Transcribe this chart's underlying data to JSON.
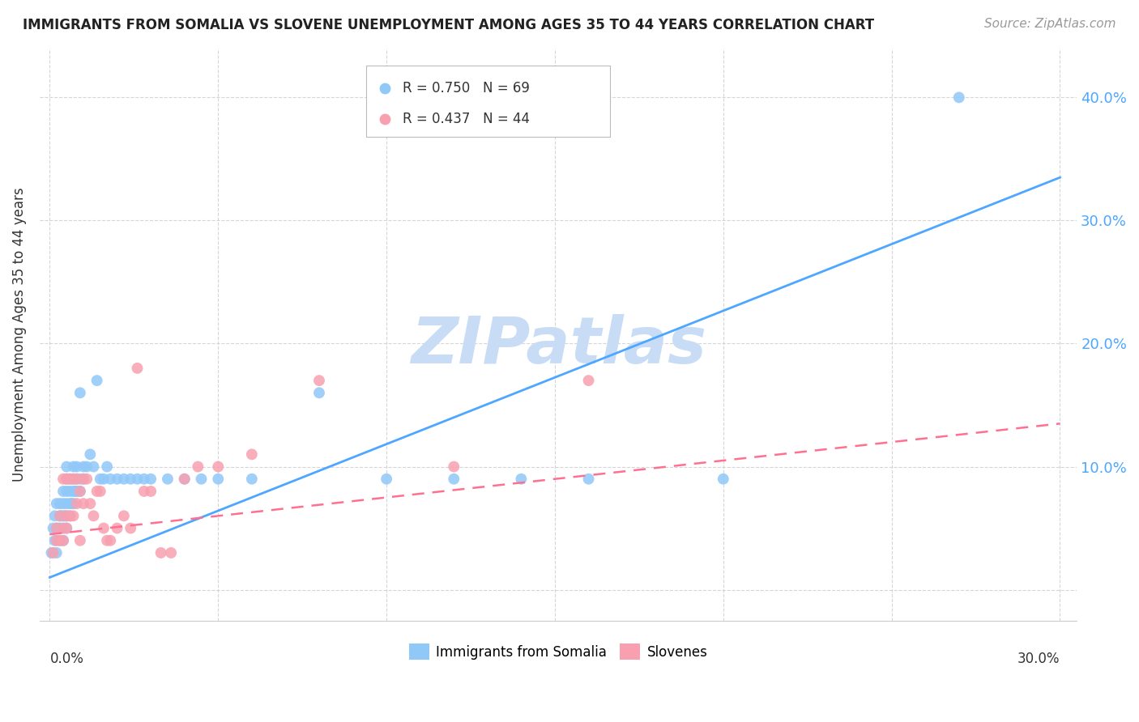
{
  "title": "IMMIGRANTS FROM SOMALIA VS SLOVENE UNEMPLOYMENT AMONG AGES 35 TO 44 YEARS CORRELATION CHART",
  "source": "Source: ZipAtlas.com",
  "ylabel": "Unemployment Among Ages 35 to 44 years",
  "xlim": [
    -0.003,
    0.305
  ],
  "ylim": [
    -0.025,
    0.44
  ],
  "yticks": [
    0.0,
    0.1,
    0.2,
    0.3,
    0.4
  ],
  "ytick_labels_right": [
    "",
    "10.0%",
    "20.0%",
    "30.0%",
    "40.0%"
  ],
  "xticks": [
    0.0,
    0.05,
    0.1,
    0.15,
    0.2,
    0.25,
    0.3
  ],
  "somalia_R": 0.75,
  "somalia_N": 69,
  "slovene_R": 0.437,
  "slovene_N": 44,
  "somalia_color": "#90c8f8",
  "slovene_color": "#f8a0b0",
  "somalia_line_color": "#4da6ff",
  "slovene_line_color": "#ff7090",
  "watermark": "ZIPatlas",
  "watermark_color": "#c8ddf5",
  "somalia_scatter_x": [
    0.0005,
    0.001,
    0.0015,
    0.0015,
    0.002,
    0.002,
    0.002,
    0.0025,
    0.003,
    0.003,
    0.003,
    0.003,
    0.0035,
    0.004,
    0.004,
    0.004,
    0.004,
    0.004,
    0.0045,
    0.005,
    0.005,
    0.005,
    0.005,
    0.005,
    0.005,
    0.006,
    0.006,
    0.006,
    0.006,
    0.0065,
    0.007,
    0.007,
    0.007,
    0.007,
    0.0075,
    0.008,
    0.008,
    0.008,
    0.009,
    0.009,
    0.009,
    0.01,
    0.01,
    0.011,
    0.012,
    0.013,
    0.014,
    0.015,
    0.016,
    0.017,
    0.018,
    0.02,
    0.022,
    0.024,
    0.026,
    0.028,
    0.03,
    0.035,
    0.04,
    0.045,
    0.05,
    0.06,
    0.08,
    0.1,
    0.12,
    0.14,
    0.16,
    0.2,
    0.27
  ],
  "somalia_scatter_y": [
    0.03,
    0.05,
    0.04,
    0.06,
    0.03,
    0.05,
    0.07,
    0.05,
    0.04,
    0.05,
    0.06,
    0.07,
    0.06,
    0.04,
    0.05,
    0.06,
    0.07,
    0.08,
    0.06,
    0.05,
    0.06,
    0.07,
    0.08,
    0.09,
    0.1,
    0.06,
    0.07,
    0.08,
    0.09,
    0.07,
    0.07,
    0.08,
    0.09,
    0.1,
    0.08,
    0.08,
    0.09,
    0.1,
    0.08,
    0.09,
    0.16,
    0.09,
    0.1,
    0.1,
    0.11,
    0.1,
    0.17,
    0.09,
    0.09,
    0.1,
    0.09,
    0.09,
    0.09,
    0.09,
    0.09,
    0.09,
    0.09,
    0.09,
    0.09,
    0.09,
    0.09,
    0.09,
    0.16,
    0.09,
    0.09,
    0.09,
    0.09,
    0.09,
    0.4
  ],
  "slovene_scatter_x": [
    0.001,
    0.002,
    0.002,
    0.003,
    0.003,
    0.004,
    0.004,
    0.004,
    0.005,
    0.005,
    0.005,
    0.006,
    0.006,
    0.007,
    0.007,
    0.008,
    0.008,
    0.009,
    0.009,
    0.01,
    0.01,
    0.011,
    0.012,
    0.013,
    0.014,
    0.015,
    0.016,
    0.017,
    0.018,
    0.02,
    0.022,
    0.024,
    0.026,
    0.028,
    0.03,
    0.033,
    0.036,
    0.04,
    0.044,
    0.05,
    0.06,
    0.08,
    0.12,
    0.16
  ],
  "slovene_scatter_y": [
    0.03,
    0.04,
    0.05,
    0.04,
    0.06,
    0.04,
    0.05,
    0.09,
    0.05,
    0.06,
    0.09,
    0.06,
    0.09,
    0.06,
    0.09,
    0.07,
    0.09,
    0.04,
    0.08,
    0.07,
    0.09,
    0.09,
    0.07,
    0.06,
    0.08,
    0.08,
    0.05,
    0.04,
    0.04,
    0.05,
    0.06,
    0.05,
    0.18,
    0.08,
    0.08,
    0.03,
    0.03,
    0.09,
    0.1,
    0.1,
    0.11,
    0.17,
    0.1,
    0.17
  ],
  "somalia_line_x": [
    0.0,
    0.3
  ],
  "somalia_line_y": [
    0.01,
    0.335
  ],
  "slovene_line_x": [
    0.0,
    0.3
  ],
  "slovene_line_y": [
    0.045,
    0.135
  ]
}
